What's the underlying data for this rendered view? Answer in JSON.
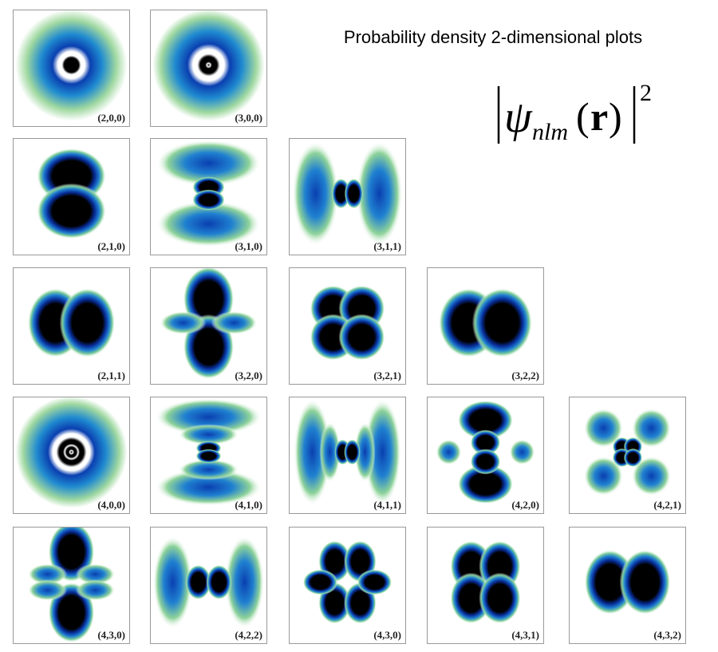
{
  "header": {
    "title": "Probability density 2-dimensional plots"
  },
  "formula": {
    "symbol": "ψ",
    "subscript": "nlm",
    "open": "(",
    "argument": "r",
    "close": ")",
    "exponent": "2"
  },
  "panels": [
    "(2,0,0)",
    "(3,0,0)",
    "(2,1,0)",
    "(3,1,0)",
    "(3,1,1)",
    "(2,1,1)",
    "(3,2,0)",
    "(3,2,1)",
    "(3,2,2)",
    "(4,0,0)",
    "(4,1,0)",
    "(4,1,1)",
    "(4,2,0)",
    "(4,2,1)",
    "(4,3,0)",
    "(4,2,2)",
    "(4,3,0)",
    "(4,3,1)",
    "(4,3,2)"
  ]
}
